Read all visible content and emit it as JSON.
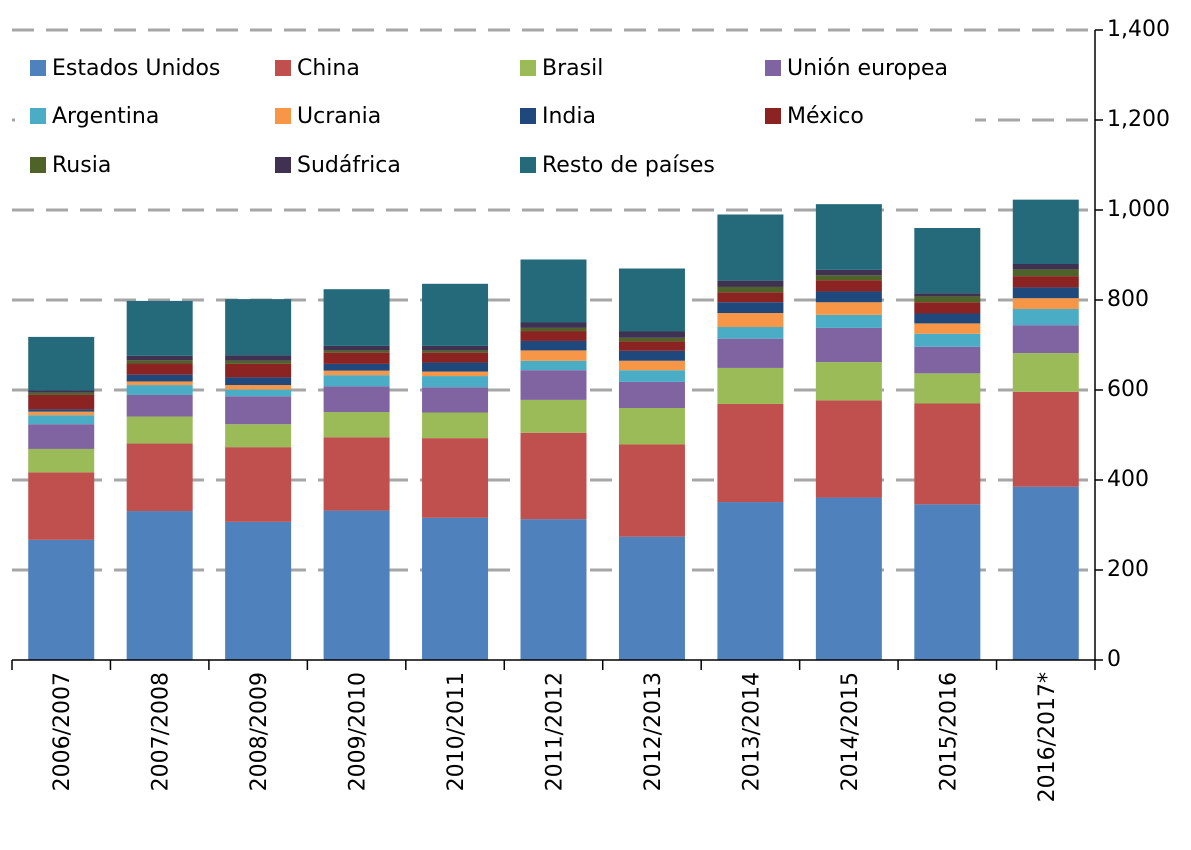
{
  "chart_data": {
    "type": "stacked_bar",
    "categories": [
      "2006/2007",
      "2007/2008",
      "2008/2009",
      "2009/2010",
      "2010/2011",
      "2011/2012",
      "2012/2013",
      "2013/2014",
      "2014/2015",
      "2015/2016",
      "2016/2017*"
    ],
    "series": [
      {
        "name": "Estados Unidos",
        "color": "#4f81bd",
        "values": [
          267,
          331,
          307,
          332,
          316,
          313,
          274,
          351,
          361,
          346,
          385
        ]
      },
      {
        "name": "China",
        "color": "#c0504d",
        "values": [
          150,
          150,
          166,
          163,
          177,
          192,
          205,
          218,
          216,
          224,
          211
        ]
      },
      {
        "name": "Brasil",
        "color": "#9bbb59",
        "values": [
          52,
          60,
          51,
          56,
          57,
          73,
          81,
          80,
          85,
          67,
          86
        ]
      },
      {
        "name": "Unión europea",
        "color": "#8064a2",
        "values": [
          55,
          48,
          62,
          57,
          56,
          66,
          58,
          65,
          76,
          59,
          62
        ]
      },
      {
        "name": "Argentina",
        "color": "#4bacc6",
        "values": [
          20,
          22,
          15,
          25,
          25,
          21,
          26,
          26,
          29,
          29,
          36
        ]
      },
      {
        "name": "Ucrania",
        "color": "#f79646",
        "values": [
          8,
          8,
          10,
          10,
          10,
          23,
          21,
          31,
          28,
          23,
          24
        ]
      },
      {
        "name": "India",
        "color": "#1f497d",
        "values": [
          5,
          15,
          17,
          15,
          20,
          21,
          22,
          24,
          24,
          22,
          24
        ]
      },
      {
        "name": "México",
        "color": "#8b2323",
        "values": [
          32,
          25,
          30,
          25,
          22,
          22,
          21,
          22,
          25,
          25,
          25
        ]
      },
      {
        "name": "Rusia",
        "color": "#4f6228",
        "values": [
          5,
          7,
          7,
          5,
          5,
          7,
          8,
          12,
          11,
          13,
          15
        ]
      },
      {
        "name": "Sudáfrica",
        "color": "#3f3151",
        "values": [
          5,
          10,
          12,
          10,
          10,
          12,
          14,
          14,
          12,
          7,
          12
        ]
      },
      {
        "name": "Resto de países",
        "color": "#256a7a",
        "values": [
          119,
          122,
          125,
          126,
          138,
          140,
          140,
          147,
          146,
          145,
          143
        ]
      }
    ],
    "ylim": [
      0,
      1400
    ],
    "yticks": [
      0,
      200,
      400,
      600,
      800,
      {
        "value": 1000,
        "label": "1,000"
      },
      {
        "value": 1200,
        "label": "1,200"
      },
      {
        "value": 1400,
        "label": "1,400"
      }
    ],
    "grid": true,
    "y_axis_side": "right",
    "legend": "top"
  }
}
